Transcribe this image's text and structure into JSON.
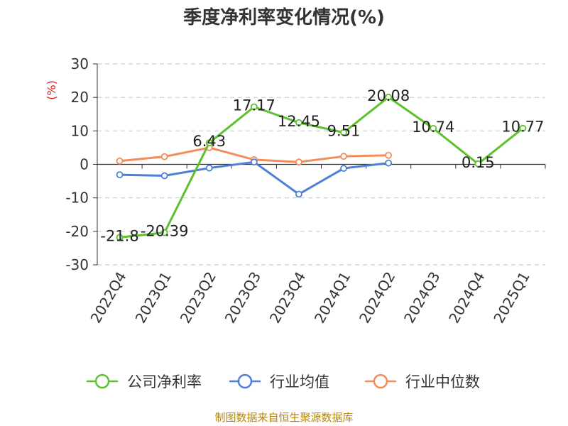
{
  "chart_data": {
    "type": "line",
    "title": "季度净利率变化情况(%)",
    "ylabel": "(%)",
    "ylim": [
      -30,
      30
    ],
    "yticks": [
      30,
      20,
      10,
      0,
      -10,
      -20,
      -30
    ],
    "categories": [
      "2022Q4",
      "2023Q1",
      "2023Q2",
      "2023Q3",
      "2023Q4",
      "2024Q1",
      "2024Q2",
      "2024Q3",
      "2024Q4",
      "2025Q1"
    ],
    "series": [
      {
        "name": "公司净利率",
        "color": "#5cc12b",
        "values": [
          -21.8,
          -20.39,
          6.43,
          17.17,
          12.45,
          9.51,
          20.08,
          10.74,
          0.15,
          10.77
        ],
        "labels": [
          "-21.8",
          "-20.39",
          "6.43",
          "17.17",
          "12.45",
          "9.51",
          "20.08",
          "10.74",
          "0.15",
          "10.77"
        ]
      },
      {
        "name": "行业均值",
        "color": "#4e7fd8",
        "values": [
          -3.1,
          -3.4,
          -1.1,
          0.7,
          -8.9,
          -1.2,
          0.4,
          null,
          null,
          null
        ]
      },
      {
        "name": "行业中位数",
        "color": "#f48c5a",
        "values": [
          1.0,
          2.3,
          5.0,
          1.4,
          0.7,
          2.4,
          2.7,
          null,
          null,
          null
        ]
      }
    ],
    "grid": true,
    "legend": "bottom"
  },
  "source": "制图数据来自恒生聚源数据库"
}
